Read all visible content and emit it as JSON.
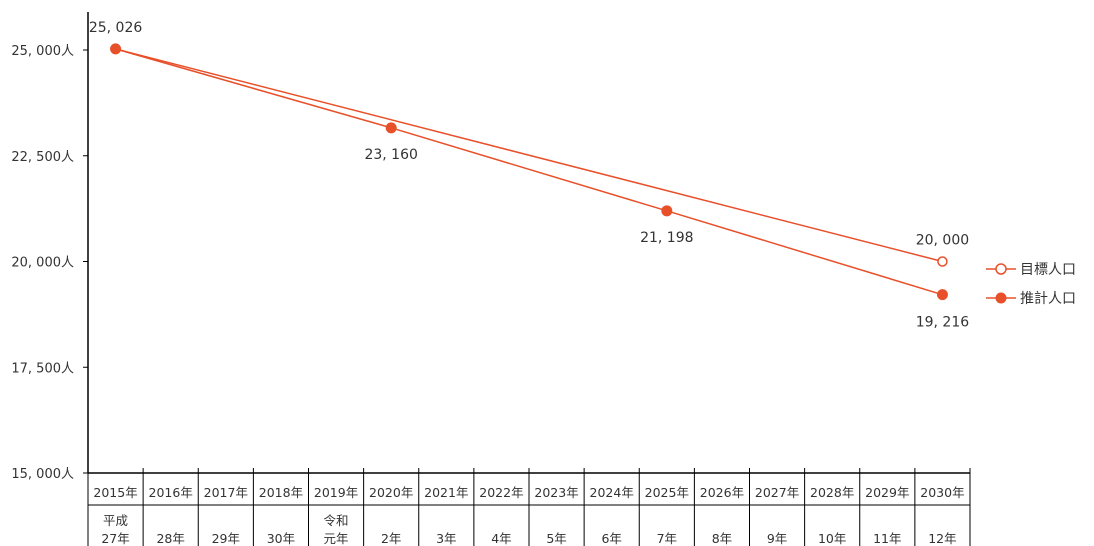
{
  "chart_data": {
    "type": "line",
    "title": "",
    "xlabel": "",
    "ylabel": "",
    "ylim": [
      15000,
      25000
    ],
    "y_ticks": [
      15000,
      17500,
      20000,
      22500,
      25000
    ],
    "y_tick_labels": [
      "15, 000人",
      "17, 500人",
      "20, 000人",
      "22, 500人",
      "25, 000人"
    ],
    "categories": [
      "2015年",
      "2016年",
      "2017年",
      "2018年",
      "2019年",
      "2020年",
      "2021年",
      "2022年",
      "2023年",
      "2024年",
      "2025年",
      "2026年",
      "2027年",
      "2028年",
      "2029年",
      "2030年"
    ],
    "era_labels": [
      "平成\n27年",
      "28年",
      "29年",
      "30年",
      "令和\n元年",
      "2年",
      "3年",
      "4年",
      "5年",
      "6年",
      "7年",
      "8年",
      "9年",
      "10年",
      "11年",
      "12年"
    ],
    "grid": false,
    "legend_position": "right",
    "series": [
      {
        "name": "目標人口",
        "color": "#E8502A",
        "marker": "open-circle",
        "points": [
          {
            "x": "2015年",
            "y": 25026,
            "label": ""
          },
          {
            "x": "2030年",
            "y": 20000,
            "label": "20, 000"
          }
        ]
      },
      {
        "name": "推計人口",
        "color": "#E8502A",
        "marker": "filled-circle",
        "points": [
          {
            "x": "2015年",
            "y": 25026,
            "label": "25, 026"
          },
          {
            "x": "2020年",
            "y": 23160,
            "label": "23, 160"
          },
          {
            "x": "2025年",
            "y": 21198,
            "label": "21, 198"
          },
          {
            "x": "2030年",
            "y": 19216,
            "label": "19, 216"
          }
        ]
      }
    ]
  }
}
